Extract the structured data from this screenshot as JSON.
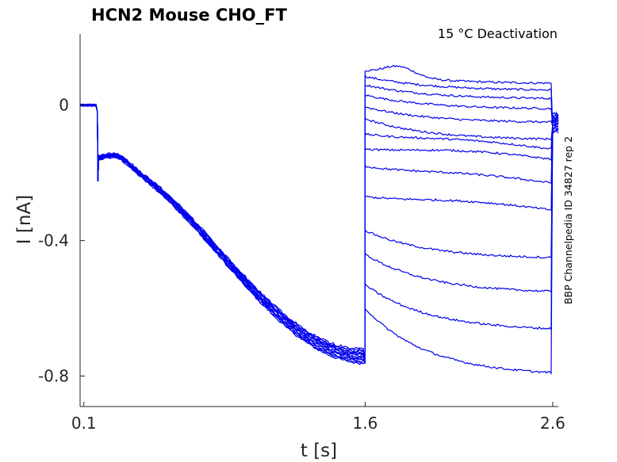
{
  "chart_data": {
    "type": "line",
    "title": "HCN2  Mouse  CHO_FT",
    "annotation": "15 °C  Deactivation",
    "side_label": "BBP Channelpedia ID 34827 rep 2",
    "xlabel": "t [s]",
    "ylabel": "I [nA]",
    "xlim": [
      0.08,
      2.63
    ],
    "ylim": [
      -0.89,
      0.21
    ],
    "xticks": [
      0.1,
      1.6,
      2.6
    ],
    "xtick_labels": [
      "0.1",
      "1.6",
      "2.6"
    ],
    "yticks": [
      0,
      -0.4,
      -0.8
    ],
    "ytick_labels": [
      "0",
      "-0.4",
      "-0.8"
    ],
    "grid": false,
    "legend": "none",
    "trace_color": "#0000ee",
    "sweeps": 14,
    "protocol": {
      "baseline": {
        "t": [
          0.08,
          0.18
        ],
        "i": 0.0
      },
      "activation": {
        "t_start": 0.18,
        "t_end": 1.6,
        "i_start": -0.16,
        "i_end": -0.74
      },
      "deactivation_sweeps": [
        {
          "i_start": 0.1,
          "i_end": 0.065
        },
        {
          "i_start": 0.085,
          "i_end": 0.045
        },
        {
          "i_start": 0.06,
          "i_end": 0.02
        },
        {
          "i_start": 0.03,
          "i_end": -0.01
        },
        {
          "i_start": -0.005,
          "i_end": -0.05
        },
        {
          "i_start": -0.04,
          "i_end": -0.1
        },
        {
          "i_start": -0.085,
          "i_end": -0.13
        },
        {
          "i_start": -0.13,
          "i_end": -0.16
        },
        {
          "i_start": -0.18,
          "i_end": -0.23
        },
        {
          "i_start": -0.27,
          "i_end": -0.31
        },
        {
          "i_start": -0.37,
          "i_end": -0.45
        },
        {
          "i_start": -0.44,
          "i_end": -0.55
        },
        {
          "i_start": -0.53,
          "i_end": -0.66
        },
        {
          "i_start": -0.6,
          "i_end": -0.79
        }
      ],
      "tail": {
        "t": [
          2.6,
          2.63
        ],
        "i": -0.05
      }
    }
  }
}
